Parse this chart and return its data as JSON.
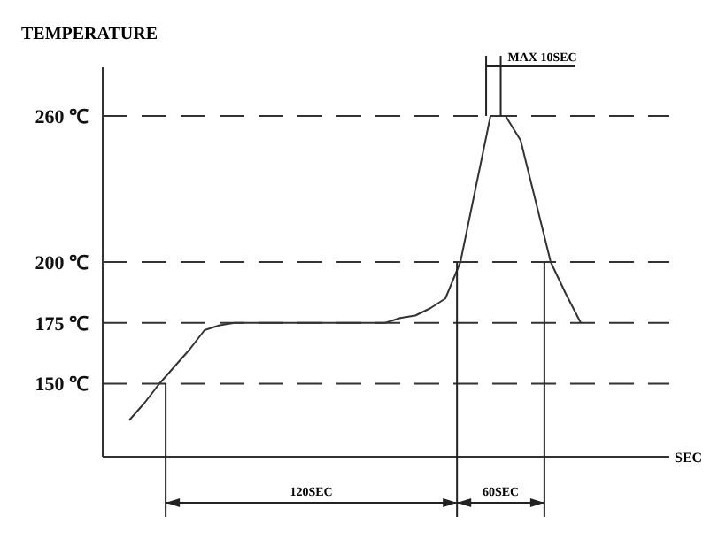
{
  "chart_data": {
    "type": "line",
    "ylabel": "TEMPERATURE",
    "tick_labels": "y",
    "categories": [
      null,
      null,
      null,
      null,
      null,
      null,
      null,
      null,
      null,
      null,
      null,
      null,
      null,
      null,
      null,
      null,
      null,
      null,
      null,
      null,
      null,
      null,
      null,
      null,
      null,
      null,
      null,
      null,
      null,
      null,
      null
    ],
    "series": [
      {
        "color": "#333333",
        "values": [
          135,
          142,
          150,
          157,
          164,
          172,
          174,
          175,
          175,
          175,
          175,
          175,
          175,
          175,
          175,
          175,
          175,
          175,
          177,
          178,
          181,
          185,
          200,
          230,
          260,
          260,
          250,
          225,
          200,
          187,
          175
        ]
      }
    ],
    "ylim": [
      120,
      280
    ],
    "yticks": [
      {
        "value": 150,
        "label": "150 ℃"
      },
      {
        "value": 175,
        "label": "175 ℃"
      },
      {
        "value": 200,
        "label": "200 ℃"
      },
      {
        "value": 260,
        "label": "260 ℃"
      }
    ],
    "grid": "y",
    "line_style": "solid",
    "marker": "none",
    "annotations": [
      "MAX 10SEC",
      "120SEC",
      "60SEC",
      "SEC"
    ]
  }
}
